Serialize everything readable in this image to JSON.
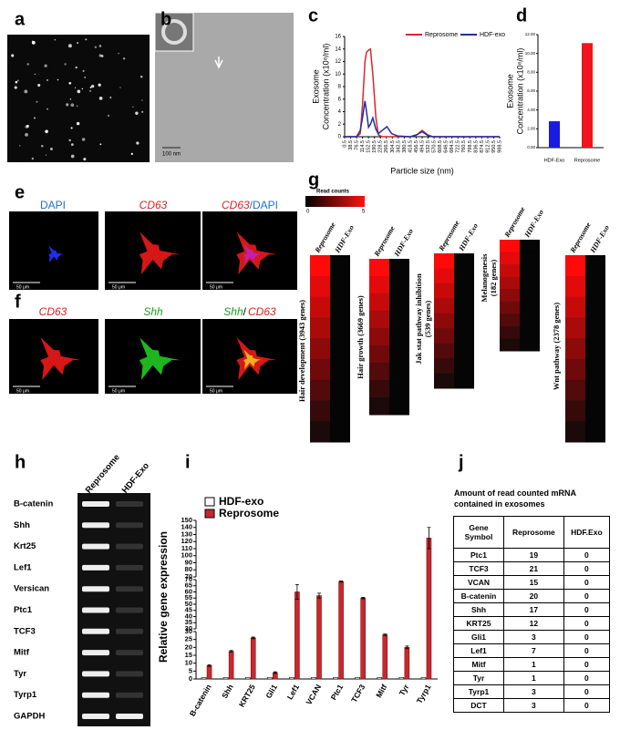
{
  "panel_letters": [
    "a",
    "b",
    "c",
    "d",
    "e",
    "f",
    "g",
    "h",
    "i",
    "j"
  ],
  "panel_b": {
    "scale_bar": "100 nm"
  },
  "chart_data": [
    {
      "type": "line",
      "ylabel": [
        "Exosome",
        "Concentration (x10⁸/ml)"
      ],
      "xlabel": "Particle size (nm)",
      "x": [
        0.5,
        76.5,
        100,
        114.5,
        130,
        140,
        152.5,
        165,
        180,
        200,
        215,
        240,
        270,
        300,
        340,
        420,
        460,
        494.5,
        530,
        560,
        988.5
      ],
      "series": [
        {
          "name": "Reprosome",
          "color": "#e0242b",
          "values": [
            0,
            0,
            0.5,
            5,
            12,
            13.5,
            13.8,
            14,
            10,
            3,
            0.3,
            0,
            0,
            0,
            0,
            0,
            0.3,
            1,
            0.3,
            0,
            0
          ]
        },
        {
          "name": "HDF-exo",
          "color": "#1f2fa8",
          "values": [
            0,
            0,
            1,
            3,
            5.7,
            4,
            1.5,
            2,
            3,
            1.2,
            0.5,
            1,
            1.6,
            0.5,
            0.1,
            0,
            0.3,
            0.8,
            0.2,
            0,
            0
          ]
        }
      ],
      "xlim": [
        0.5,
        988.5
      ],
      "xticks": [
        0.5,
        38.5,
        76.5,
        114.5,
        152.5,
        190.5,
        228.5,
        266.5,
        304.5,
        342.5,
        380.5,
        418.5,
        456.5,
        494.5,
        532.5,
        570.5,
        608.5,
        646.5,
        684.5,
        722.5,
        760.5,
        798.5,
        836.5,
        874.5,
        912.5,
        950.5,
        988.5
      ],
      "ylim": [
        0,
        16
      ],
      "yticks": [
        0,
        2,
        4,
        6,
        8,
        10,
        12,
        14,
        16
      ],
      "legend": "top-right"
    },
    {
      "type": "bar",
      "ylabel": [
        "Exosome",
        "Concentration (x10⁸/ml)"
      ],
      "categories": [
        "HDF-Exo",
        "Reprosome"
      ],
      "values": [
        2.8,
        11.1
      ],
      "colors": [
        "#1a1ae0",
        "#f0141e"
      ],
      "ylim": [
        0,
        12
      ],
      "yticks": [
        {
          "value": 0,
          "label": "0.00"
        },
        {
          "value": 2,
          "label": "2.00"
        },
        {
          "value": 4,
          "label": "4.00"
        },
        {
          "value": 6,
          "label": "6.00"
        },
        {
          "value": 8,
          "label": "8.00"
        },
        {
          "value": 10,
          "label": "10.00"
        },
        {
          "value": 12,
          "label": "12.00"
        }
      ]
    },
    {
      "type": "grouped-bar",
      "ylabel": "Relative gene expression",
      "categories": [
        "B-catenin",
        "Shh",
        "KRT25",
        "Gli1",
        "Lef1",
        "VCAN",
        "Ptc1",
        "TCF3",
        "Mitf",
        "Tyr",
        "Tyrp1"
      ],
      "series": [
        {
          "name": "HDF-exo",
          "color": "#ffffff",
          "values": [
            1,
            1,
            1,
            1,
            1,
            1,
            1,
            1,
            1,
            1,
            1
          ]
        },
        {
          "name": "Reprosome",
          "color": "#c8282d",
          "values": [
            8.5,
            17.5,
            26,
            4,
            60,
            57,
            68.5,
            55,
            28,
            20,
            125
          ],
          "errors": [
            0.5,
            0.5,
            0.5,
            0.5,
            6,
            2,
            0.5,
            0.5,
            0.5,
            0.8,
            15
          ]
        }
      ],
      "axis_segments": [
        {
          "ylim": [
            0,
            30
          ],
          "yticks": [
            0,
            5,
            10,
            15,
            20,
            25,
            30
          ]
        },
        {
          "ylim": [
            30,
            70
          ],
          "yticks": [
            30,
            35,
            40,
            45,
            50,
            55,
            60,
            65,
            70
          ]
        },
        {
          "ylim": [
            70,
            150
          ],
          "yticks": [
            70,
            80,
            90,
            100,
            110,
            120,
            130,
            140,
            150
          ]
        }
      ],
      "legend": "top-left"
    }
  ],
  "panel_e": {
    "titles": [
      [
        "DAPI"
      ],
      [
        "CD63"
      ],
      [
        "CD63",
        "/DAPI"
      ]
    ],
    "scale_bars": [
      "50 μm",
      "50 μm",
      "50 μm"
    ]
  },
  "panel_f": {
    "titles": [
      [
        "CD63"
      ],
      [
        "Shh"
      ],
      [
        "Shh",
        "/",
        "CD63"
      ]
    ],
    "scale_bars": [
      "50 μm",
      "50 μm",
      "50 μm"
    ]
  },
  "panel_g": {
    "colorbar_title": "Read counts",
    "colorbar_ticks": [
      0,
      5
    ],
    "columns": [
      "Reprosome",
      "HDF-Exo"
    ],
    "blocks": [
      [
        "Hair development (3943 genes)"
      ],
      [
        "Hair growth (3669 genes)"
      ],
      [
        "Jak stat pathway inhibition",
        "(539 genes)"
      ],
      [
        "Melanogenesis",
        "(182 genes)"
      ],
      [
        "Wnt pathway (2378 genes)"
      ]
    ]
  },
  "panel_h": {
    "columns": [
      "Reprosome",
      "HDF-Exo"
    ],
    "rows": [
      "B-catenin",
      "Shh",
      "Krt25",
      "Lef1",
      "Versican",
      "Ptc1",
      "TCF3",
      "Mitf",
      "Tyr",
      "Tyrp1",
      "GAPDH"
    ]
  },
  "panel_j": {
    "title": [
      "Amount of read counted mRNA",
      "contained in exosomes"
    ],
    "header": [
      "Gene Symbol",
      "Reprosome",
      "HDF.Exo"
    ],
    "rows": [
      [
        "Ptc1",
        19,
        0
      ],
      [
        "TCF3",
        21,
        0
      ],
      [
        "VCAN",
        15,
        0
      ],
      [
        "B-catenin",
        20,
        0
      ],
      [
        "Shh",
        17,
        0
      ],
      [
        "KRT25",
        12,
        0
      ],
      [
        "Gli1",
        3,
        0
      ],
      [
        "Lef1",
        7,
        0
      ],
      [
        "Mitf",
        1,
        0
      ],
      [
        "Tyr",
        1,
        0
      ],
      [
        "Tyrp1",
        3,
        0
      ],
      [
        "DCT",
        3,
        0
      ]
    ]
  }
}
